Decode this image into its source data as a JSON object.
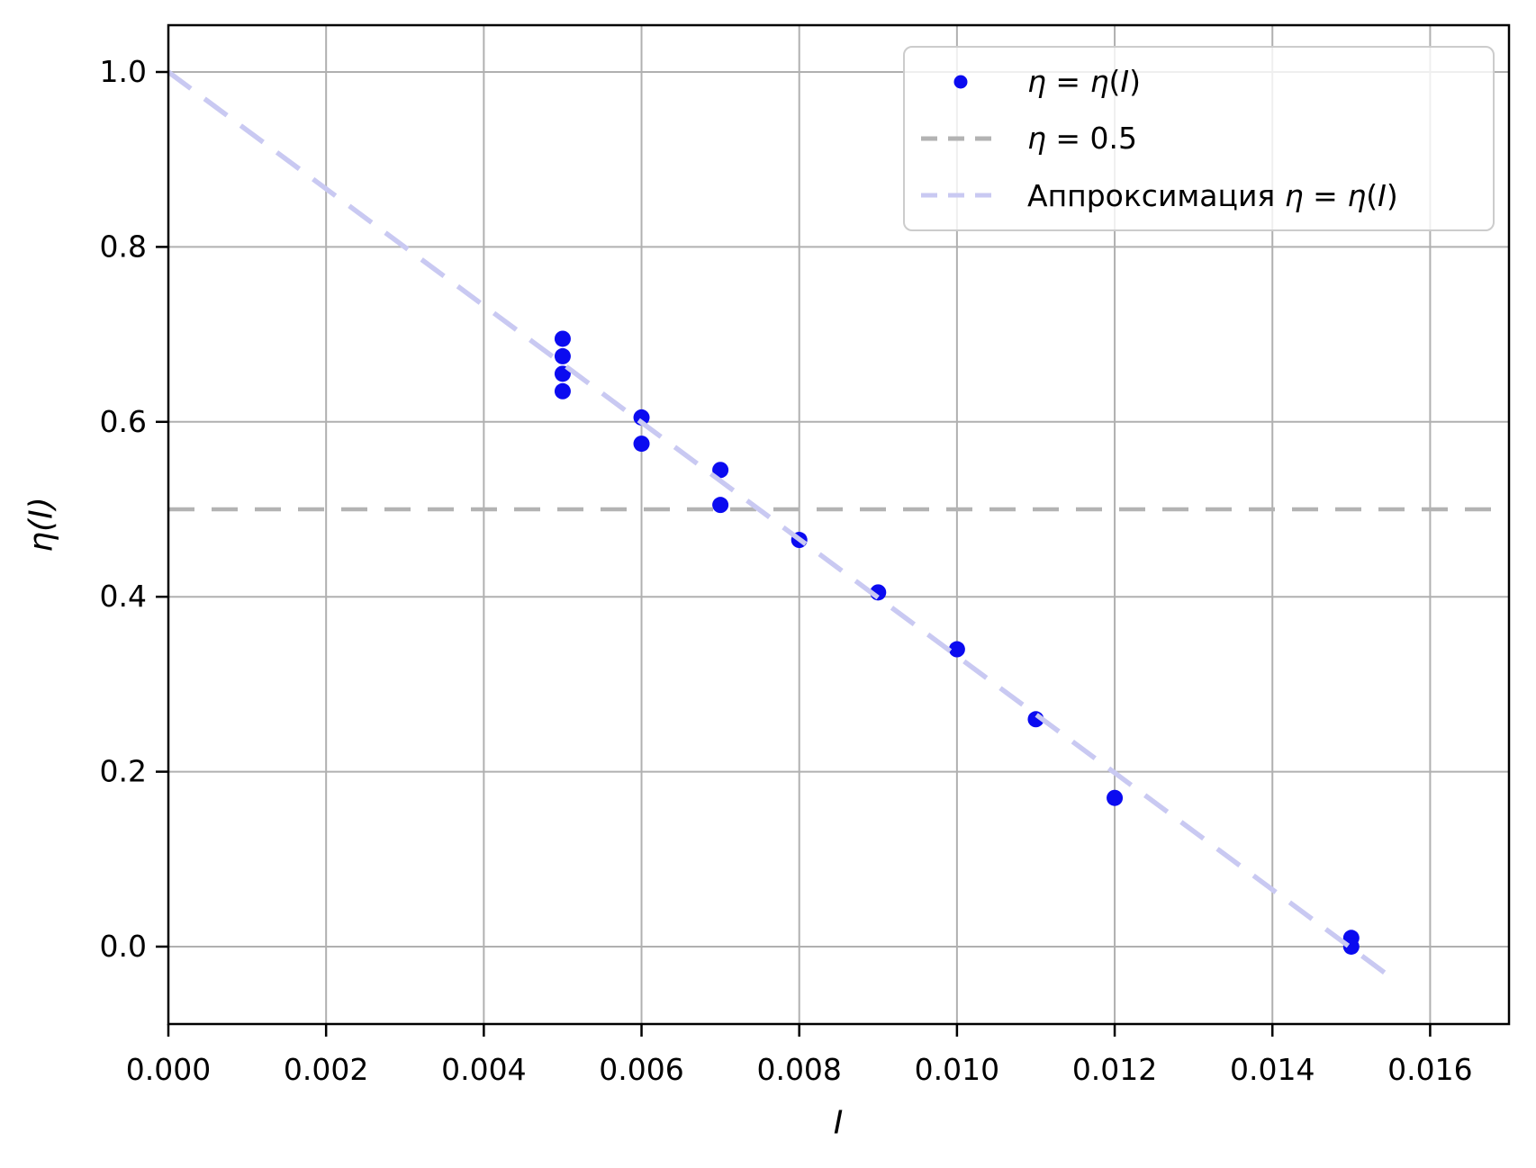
{
  "figure": {
    "background": "#ffffff"
  },
  "chart_data": {
    "type": "scatter",
    "title": "",
    "xlabel": "I",
    "ylabel": "η(I)",
    "xlim": [
      0,
      0.017
    ],
    "ylim": [
      -0.0885,
      1.0535
    ],
    "grid": true,
    "grid_color": "#b0b0b0",
    "x_ticks": [
      0.0,
      0.002,
      0.004,
      0.006,
      0.008,
      0.01,
      0.012,
      0.014,
      0.016
    ],
    "x_tick_labels": [
      "0.000",
      "0.002",
      "0.004",
      "0.006",
      "0.008",
      "0.010",
      "0.012",
      "0.014",
      "0.016"
    ],
    "y_ticks": [
      0.0,
      0.2,
      0.4,
      0.6,
      0.8,
      1.0
    ],
    "y_tick_labels": [
      "0.0",
      "0.2",
      "0.4",
      "0.6",
      "0.8",
      "1.0"
    ],
    "series": [
      {
        "name": "η = η(I)",
        "kind": "scatter",
        "color": "#0b0bf0",
        "points": [
          [
            0.005,
            0.695
          ],
          [
            0.005,
            0.675
          ],
          [
            0.005,
            0.655
          ],
          [
            0.005,
            0.635
          ],
          [
            0.006,
            0.605
          ],
          [
            0.006,
            0.575
          ],
          [
            0.007,
            0.545
          ],
          [
            0.007,
            0.505
          ],
          [
            0.008,
            0.465
          ],
          [
            0.009,
            0.405
          ],
          [
            0.01,
            0.34
          ],
          [
            0.011,
            0.26
          ],
          [
            0.012,
            0.17
          ],
          [
            0.015,
            0.01
          ],
          [
            0.015,
            0.0
          ]
        ]
      },
      {
        "name": "η = 0.5",
        "kind": "hline",
        "color": "#b3b3b3",
        "y": 0.5
      },
      {
        "name": "Аппроксимация η = η(I)",
        "kind": "line",
        "color": "#c9c9f2",
        "points": [
          [
            0.0,
            1.0
          ],
          [
            0.0155,
            -0.035
          ]
        ]
      }
    ],
    "legend": {
      "position": "upper right",
      "entries": [
        {
          "label": "η = η(I)",
          "marker": "dot",
          "color": "#0b0bf0"
        },
        {
          "label": "η = 0.5",
          "marker": "dash",
          "color": "#b3b3b3"
        },
        {
          "label": "Аппроксимация η = η(I)",
          "marker": "dash",
          "color": "#c9c9f2"
        }
      ]
    }
  }
}
